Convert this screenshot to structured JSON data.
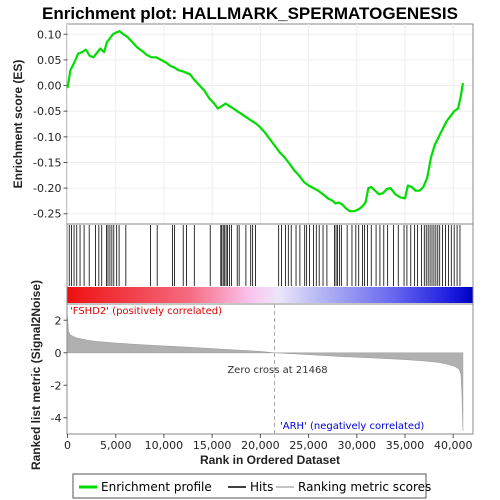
{
  "chart_data": {
    "type": "line",
    "title": "Enrichment plot: HALLMARK_SPERMATOGENESIS",
    "xlabel": "Rank in Ordered Dataset",
    "ylabel_top": "Enrichment score (ES)",
    "ylabel_bottom": "Ranked list metric (Signal2Noise)",
    "xlim": [
      0,
      42000
    ],
    "es_ylim": [
      -0.27,
      0.12
    ],
    "metric_ylim": [
      -5,
      3
    ],
    "x_ticks": [
      0,
      5000,
      10000,
      15000,
      20000,
      25000,
      30000,
      35000,
      40000
    ],
    "x_tick_labels": [
      "0",
      "5,000",
      "10,000",
      "15,000",
      "20,000",
      "25,000",
      "30,000",
      "35,000",
      "40,000"
    ],
    "es_ticks": [
      0.1,
      0.05,
      0.0,
      -0.05,
      -0.1,
      -0.15,
      -0.2,
      -0.25
    ],
    "es_tick_labels": [
      "0.10",
      "0.05",
      "0.00",
      "-0.05",
      "-0.10",
      "-0.15",
      "-0.20",
      "-0.25"
    ],
    "metric_ticks": [
      2,
      0,
      -2,
      -4
    ],
    "metric_tick_labels": [
      "2",
      "0",
      "-2",
      "-4"
    ],
    "zero_cross_rank": 21468,
    "zero_cross_label": "Zero cross at 21468",
    "positive_label": "'FSHD2' (positively correlated)",
    "negative_label": "'ARH' (negatively correlated)",
    "legend": {
      "items": [
        {
          "label": "Enrichment profile"
        },
        {
          "label": "Hits"
        },
        {
          "label": "Ranking metric scores"
        }
      ],
      "placement": "bottom"
    },
    "colors": {
      "enrichment": "#00dd00",
      "hits": "#000000",
      "metric_fill": "#b0b0b0",
      "positive": "#ff0000",
      "negative": "#0000ff",
      "zero_line": "#aaaaaa"
    },
    "enrichment_profile": {
      "x": [
        0,
        300,
        700,
        1100,
        1500,
        1900,
        2300,
        2700,
        3100,
        3400,
        3800,
        4100,
        4400,
        4700,
        5000,
        5400,
        5800,
        6200,
        6700,
        7200,
        7700,
        8200,
        8700,
        9200,
        9700,
        10200,
        10700,
        11100,
        11500,
        11900,
        12300,
        12700,
        13200,
        13700,
        14200,
        14700,
        15200,
        15600,
        16000,
        16400,
        16800,
        17200,
        17600,
        18000,
        18400,
        18800,
        19200,
        19600,
        20000,
        20400,
        20800,
        21200,
        21600,
        22000,
        22500,
        23000,
        23500,
        24000,
        24500,
        25000,
        25500,
        26000,
        26500,
        27000,
        27500,
        27800,
        28100,
        28500,
        28900,
        29300,
        29700,
        30000,
        30300,
        30600,
        30900,
        31200,
        31500,
        31900,
        32300,
        32700,
        33100,
        33500,
        34000,
        34500,
        35000,
        35300,
        35700,
        36100,
        36500,
        36900,
        37300,
        37700,
        38100,
        38500,
        38900,
        39300,
        39700,
        40100,
        40500,
        40800,
        41000
      ],
      "y": [
        -0.005,
        0.03,
        0.045,
        0.062,
        0.065,
        0.07,
        0.058,
        0.055,
        0.065,
        0.072,
        0.065,
        0.085,
        0.092,
        0.1,
        0.103,
        0.106,
        0.1,
        0.095,
        0.085,
        0.075,
        0.068,
        0.06,
        0.055,
        0.055,
        0.05,
        0.045,
        0.038,
        0.035,
        0.03,
        0.028,
        0.025,
        0.022,
        0.01,
        0.0,
        -0.01,
        -0.025,
        -0.035,
        -0.045,
        -0.04,
        -0.035,
        -0.04,
        -0.045,
        -0.05,
        -0.055,
        -0.06,
        -0.065,
        -0.07,
        -0.075,
        -0.082,
        -0.09,
        -0.1,
        -0.11,
        -0.12,
        -0.13,
        -0.14,
        -0.152,
        -0.165,
        -0.175,
        -0.188,
        -0.195,
        -0.2,
        -0.205,
        -0.212,
        -0.22,
        -0.225,
        -0.23,
        -0.228,
        -0.232,
        -0.24,
        -0.245,
        -0.245,
        -0.243,
        -0.24,
        -0.235,
        -0.228,
        -0.2,
        -0.198,
        -0.205,
        -0.212,
        -0.21,
        -0.202,
        -0.2,
        -0.212,
        -0.218,
        -0.22,
        -0.195,
        -0.198,
        -0.205,
        -0.205,
        -0.198,
        -0.18,
        -0.14,
        -0.115,
        -0.1,
        -0.085,
        -0.07,
        -0.06,
        -0.05,
        -0.045,
        -0.02,
        0.005
      ]
    },
    "hits_ranks": [
      180,
      420,
      680,
      960,
      1300,
      1720,
      2250,
      2900,
      3250,
      3550,
      4050,
      4200,
      4400,
      4600,
      4800,
      5100,
      5350,
      6050,
      8600,
      9300,
      10900,
      11100,
      12000,
      12350,
      13150,
      14800,
      15900,
      16000,
      16150,
      16300,
      16450,
      16600,
      16800,
      17000,
      17600,
      17800,
      18500,
      19000,
      19200,
      19500,
      21900,
      22200,
      22600,
      22900,
      23200,
      23700,
      24100,
      24600,
      24800,
      25100,
      25500,
      25800,
      26100,
      26500,
      26900,
      27700,
      27850,
      28000,
      28200,
      28400,
      29000,
      29500,
      29900,
      30200,
      30600,
      30800,
      31100,
      31500,
      32000,
      32400,
      32800,
      33200,
      33800,
      34300,
      34900,
      35200,
      35600,
      36000,
      36300,
      36700,
      37000,
      37200,
      37400,
      37600,
      37800,
      38000,
      38200,
      38400,
      38600,
      38900,
      39200,
      39500,
      39800,
      40100,
      40400,
      40700
    ],
    "metric_profile": {
      "x": [
        0,
        100,
        300,
        600,
        1000,
        2000,
        3000,
        5000,
        8000,
        12000,
        16000,
        20000,
        21468,
        24000,
        28000,
        32000,
        35000,
        37000,
        38500,
        39500,
        40200,
        40600,
        40800,
        40900,
        41000
      ],
      "y": [
        2.3,
        1.3,
        1.1,
        1.0,
        0.9,
        0.78,
        0.7,
        0.6,
        0.48,
        0.36,
        0.22,
        0.08,
        0.0,
        -0.08,
        -0.22,
        -0.33,
        -0.42,
        -0.5,
        -0.6,
        -0.72,
        -0.85,
        -1.0,
        -1.3,
        -2.5,
        -4.8
      ]
    }
  },
  "page": {
    "title": "Enrichment plot: HALLMARK_SPERMATOGENESIS"
  }
}
